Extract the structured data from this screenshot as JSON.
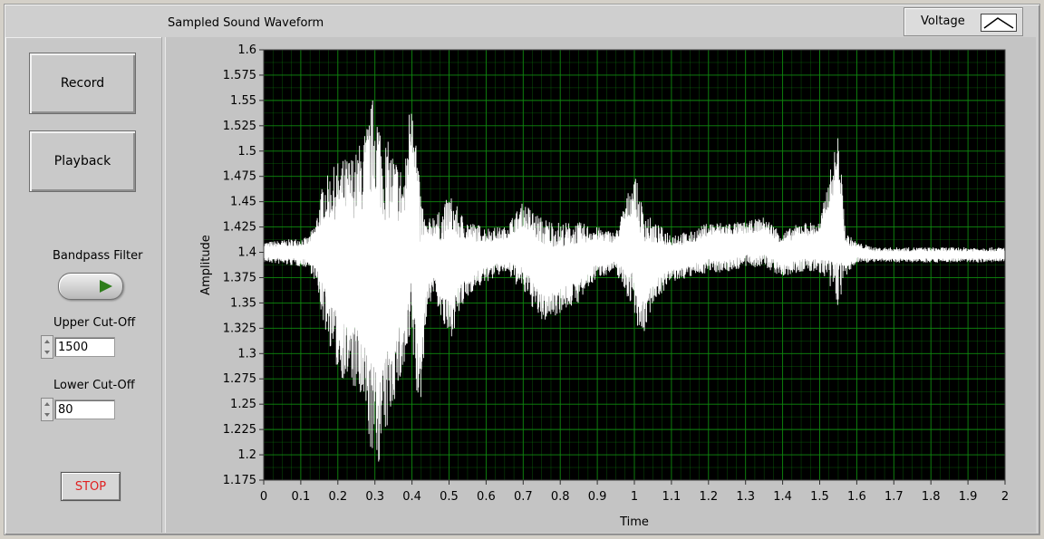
{
  "window": {
    "graph_title": "Sampled Sound Waveform"
  },
  "controls": {
    "record_label": "Record",
    "playback_label": "Playback",
    "bandpass_label": "Bandpass Filter",
    "upper_cutoff_label": "Upper Cut-Off",
    "upper_cutoff_value": "1500",
    "lower_cutoff_label": "Lower Cut-Off",
    "lower_cutoff_value": "80",
    "stop_label": "STOP"
  },
  "legend": {
    "label": "Voltage",
    "icon": "line-plot-icon"
  },
  "colors": {
    "plot_bg": "#000000",
    "grid": "#0f8a0f",
    "trace": "#ffffff",
    "stop_text": "#e02020",
    "toggle_led": "#2e7d1a"
  },
  "chart_data": {
    "type": "line",
    "xlabel": "Time",
    "ylabel": "Amplitude",
    "xlim": [
      0,
      2
    ],
    "ylim": [
      1.175,
      1.6
    ],
    "x_ticks": [
      "0",
      "0.1",
      "0.2",
      "0.3",
      "0.4",
      "0.5",
      "0.6",
      "0.7",
      "0.8",
      "0.9",
      "1",
      "1.1",
      "1.2",
      "1.3",
      "1.4",
      "1.5",
      "1.6",
      "1.7",
      "1.8",
      "1.9",
      "2"
    ],
    "y_ticks": [
      "1.6",
      "1.575",
      "1.55",
      "1.525",
      "1.5",
      "1.475",
      "1.45",
      "1.425",
      "1.4",
      "1.375",
      "1.35",
      "1.325",
      "1.3",
      "1.275",
      "1.25",
      "1.225",
      "1.2",
      "1.175"
    ],
    "grid": true,
    "series": [
      {
        "envelope_time": [
          0,
          0.12,
          0.14,
          0.16,
          0.2,
          0.25,
          0.28,
          0.3,
          0.32,
          0.35,
          0.38,
          0.4,
          0.42,
          0.44,
          0.46,
          0.48,
          0.5,
          0.53,
          0.56,
          0.6,
          0.65,
          0.7,
          0.75,
          0.8,
          0.85,
          0.9,
          0.95,
          1.0,
          1.02,
          1.05,
          1.1,
          1.15,
          1.2,
          1.25,
          1.3,
          1.35,
          1.4,
          1.45,
          1.5,
          1.55,
          1.57,
          1.6,
          1.65,
          1.7,
          2.0
        ],
        "envelope_upper": [
          1.41,
          1.415,
          1.43,
          1.47,
          1.49,
          1.5,
          1.53,
          1.565,
          1.52,
          1.5,
          1.48,
          1.585,
          1.47,
          1.43,
          1.44,
          1.44,
          1.46,
          1.44,
          1.43,
          1.425,
          1.425,
          1.45,
          1.435,
          1.43,
          1.43,
          1.425,
          1.42,
          1.48,
          1.45,
          1.43,
          1.42,
          1.42,
          1.43,
          1.43,
          1.43,
          1.435,
          1.42,
          1.43,
          1.43,
          1.52,
          1.42,
          1.41,
          1.405,
          1.405,
          1.405
        ],
        "envelope_lower": [
          1.39,
          1.385,
          1.37,
          1.33,
          1.28,
          1.26,
          1.22,
          1.18,
          1.2,
          1.25,
          1.28,
          1.3,
          1.23,
          1.34,
          1.36,
          1.33,
          1.31,
          1.34,
          1.36,
          1.37,
          1.38,
          1.36,
          1.33,
          1.34,
          1.35,
          1.375,
          1.38,
          1.34,
          1.31,
          1.35,
          1.37,
          1.375,
          1.38,
          1.38,
          1.385,
          1.385,
          1.375,
          1.38,
          1.38,
          1.345,
          1.375,
          1.39,
          1.39,
          1.39,
          1.39
        ]
      }
    ]
  }
}
